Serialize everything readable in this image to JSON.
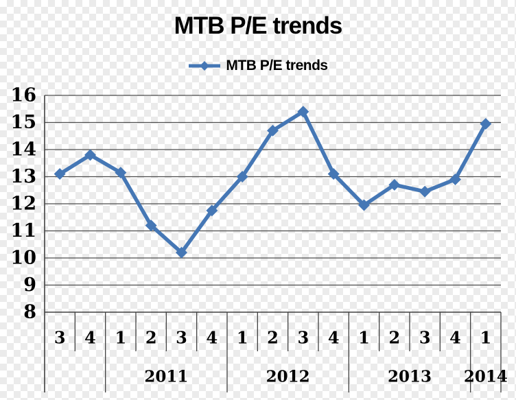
{
  "chart": {
    "title": "MTB P/E trends",
    "legend": {
      "label": "MTB P/E trends"
    }
  },
  "colors": {
    "series": "#4577b5",
    "grid": "#4d4d4d",
    "axis": "#404040",
    "text": "#000000"
  },
  "chart_data": {
    "type": "line",
    "title": "MTB P/E trends",
    "legend_entries": [
      "MTB P/E trends"
    ],
    "legend_position": "top",
    "marker": "diamond",
    "grid": true,
    "ylim": [
      8,
      16
    ],
    "yticks": [
      8,
      9,
      10,
      11,
      12,
      13,
      14,
      15,
      16
    ],
    "x_quarters": [
      "3",
      "4",
      "1",
      "2",
      "3",
      "4",
      "1",
      "2",
      "3",
      "4",
      "1",
      "2",
      "3",
      "4",
      "1"
    ],
    "year_groups": [
      {
        "label": "",
        "count": 2
      },
      {
        "label": "2011",
        "count": 4
      },
      {
        "label": "2012",
        "count": 4
      },
      {
        "label": "2013",
        "count": 4
      },
      {
        "label": "2014",
        "count": 1
      }
    ],
    "series": [
      {
        "name": "MTB P/E trends",
        "values": [
          13.1,
          13.8,
          13.15,
          11.2,
          10.2,
          11.75,
          13.0,
          14.7,
          15.4,
          13.1,
          11.95,
          12.7,
          12.45,
          12.9,
          14.95
        ]
      }
    ]
  }
}
